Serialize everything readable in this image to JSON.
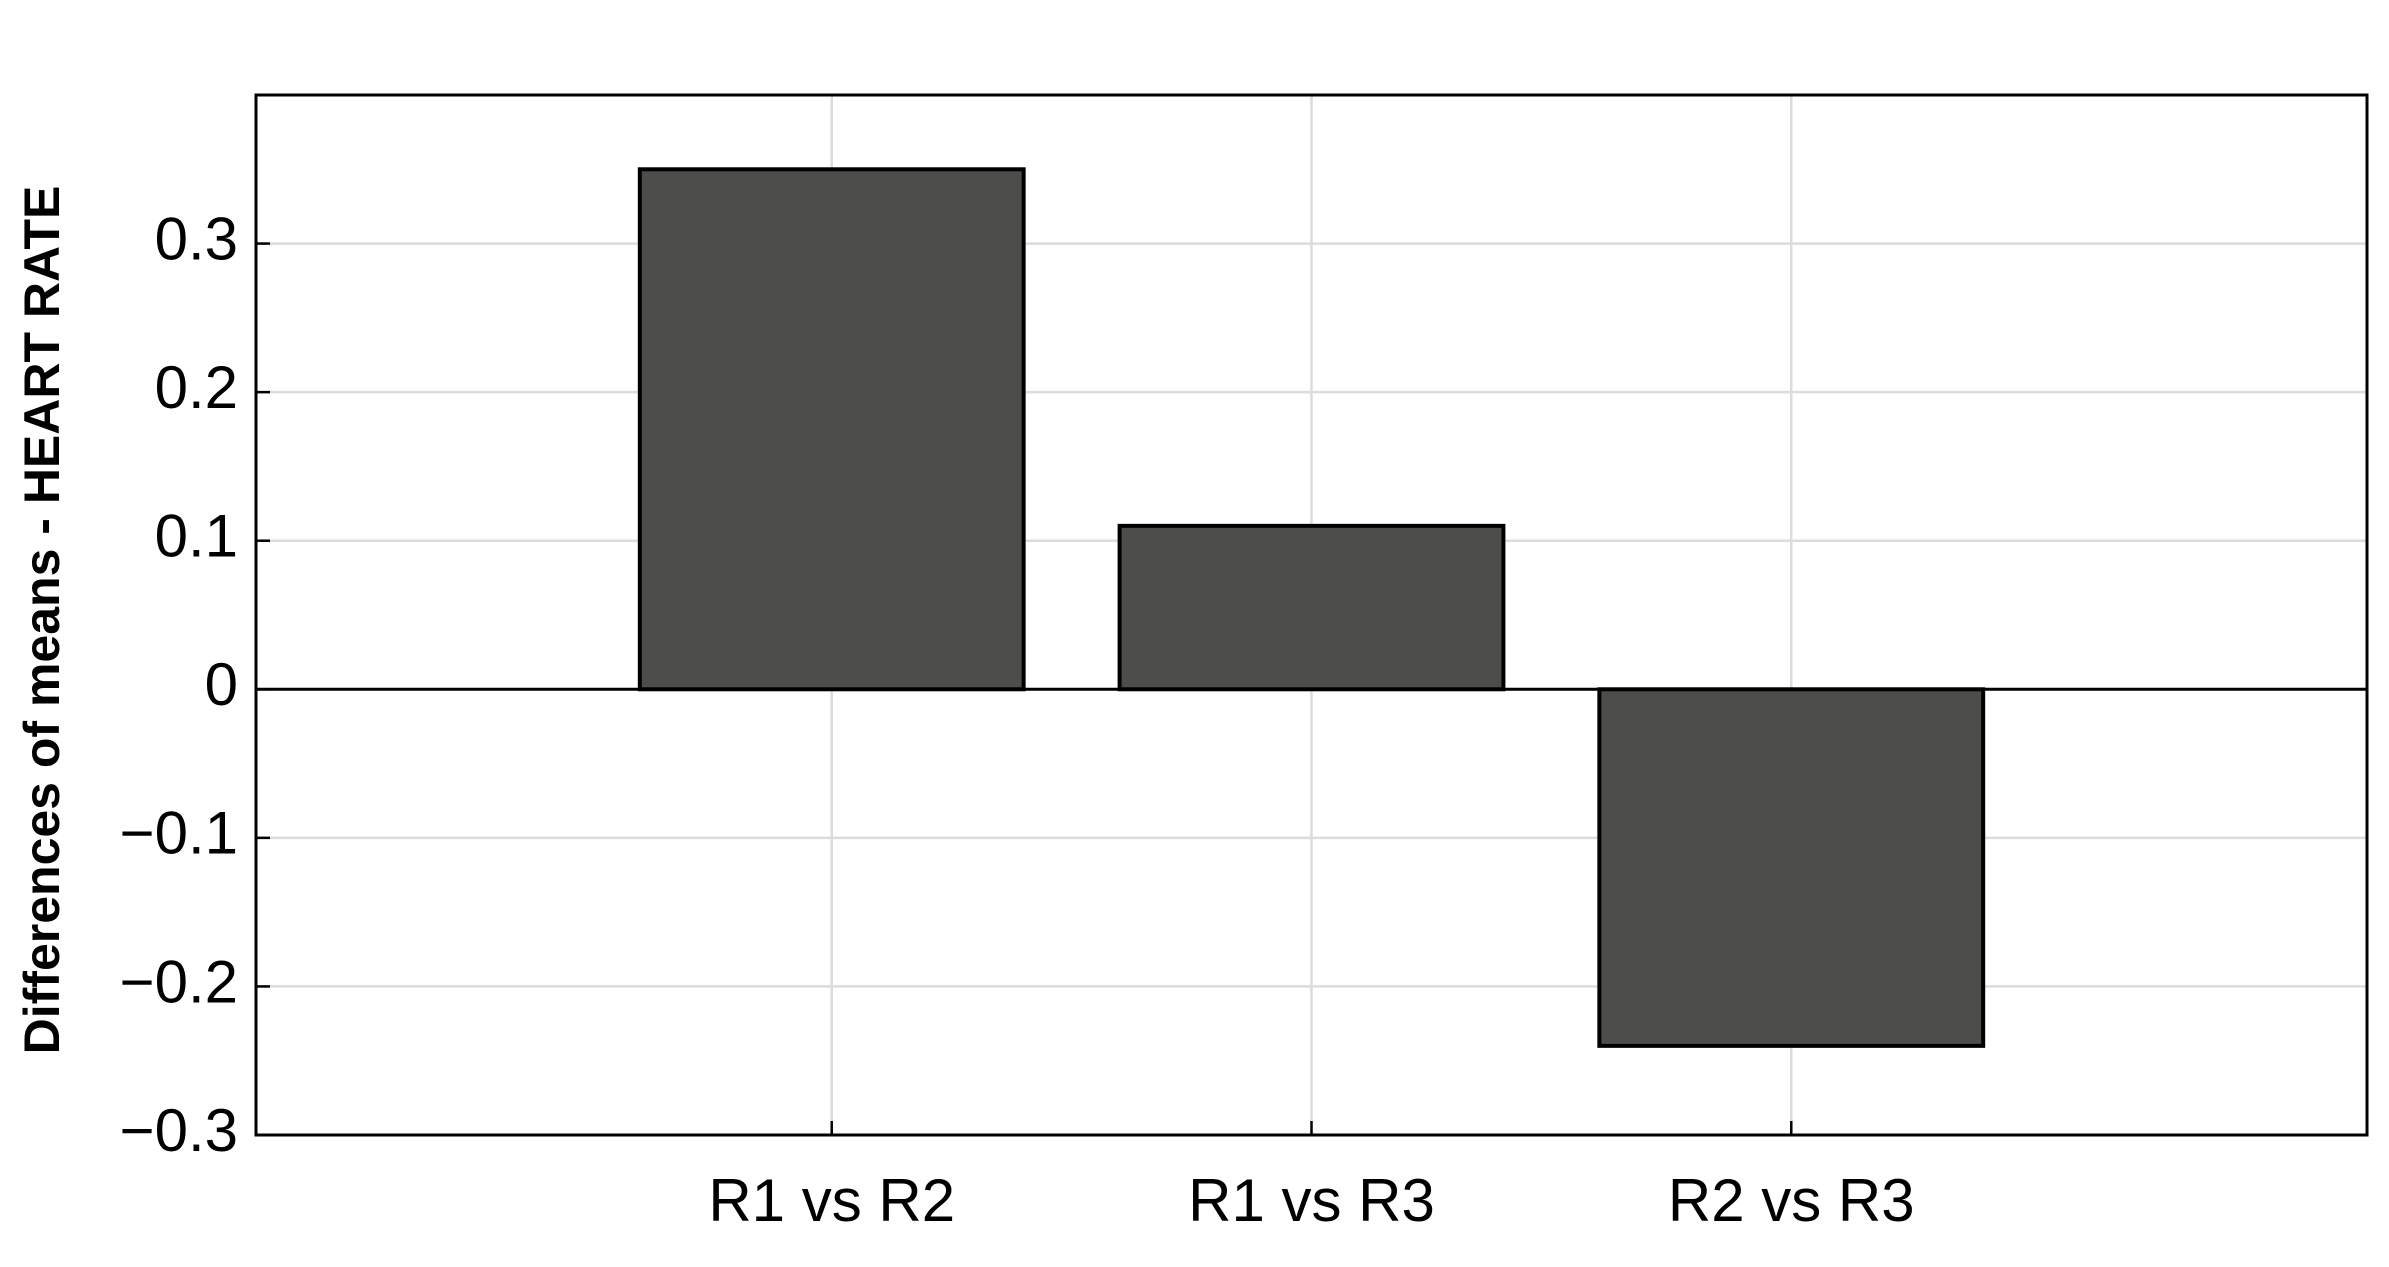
{
  "chart_data": {
    "type": "bar",
    "ylabel": "Differences of means - HEART RATE",
    "categories": [
      "R1 vs R2",
      "R1 vs R3",
      "R2 vs R3"
    ],
    "values": [
      0.35,
      0.11,
      -0.24
    ],
    "color": "#4d4d4b",
    "ylim": [
      -0.3,
      0.4
    ],
    "yticks": [
      {
        "value": -0.3,
        "label": "−0.3"
      },
      {
        "value": -0.2,
        "label": "−0.2"
      },
      {
        "value": -0.1,
        "label": "−0.1"
      },
      0,
      0.1,
      0.2,
      0.3
    ],
    "grid": true
  }
}
